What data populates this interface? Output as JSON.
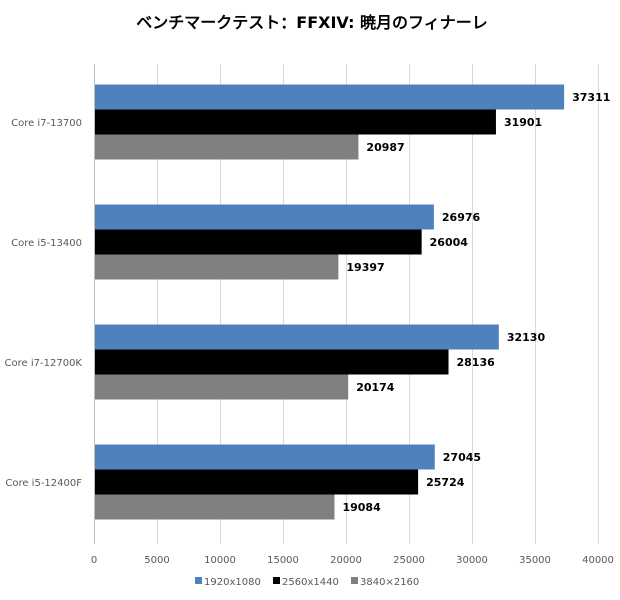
{
  "chart_data": {
    "type": "bar",
    "orientation": "horizontal",
    "title": "ベンチマークテスト：FFXIV: 暁月のフィナーレ",
    "xlabel": "",
    "ylabel": "",
    "categories": [
      "Core i7-13700",
      "Core i5-13400",
      "Core i7-12700K",
      "Core i5-12400F"
    ],
    "series": [
      {
        "name": "1920x1080",
        "color": "#4f81bd",
        "values": [
          37311,
          26976,
          32130,
          27045
        ]
      },
      {
        "name": "2560x1440",
        "color": "#000000",
        "values": [
          31901,
          26004,
          28136,
          25724
        ]
      },
      {
        "name": "3840×2160",
        "color": "#808080",
        "values": [
          20987,
          19397,
          20174,
          19084
        ]
      }
    ],
    "xlim": [
      0,
      40000
    ],
    "xticks": [
      0,
      5000,
      10000,
      15000,
      20000,
      25000,
      30000,
      35000,
      40000
    ],
    "grid": true,
    "legend_position": "bottom",
    "data_labels": true
  }
}
